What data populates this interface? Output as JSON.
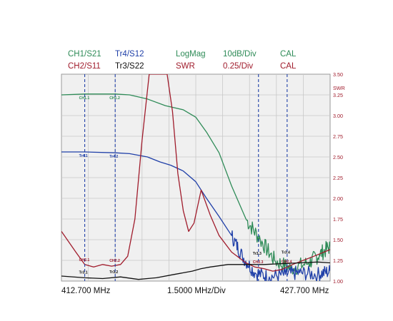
{
  "header": {
    "row1": [
      {
        "text": "CH1/S21",
        "color": "#2e8b57"
      },
      {
        "text": "Tr4/S12",
        "color": "#1f3fa8"
      },
      {
        "text": "LogMag",
        "color": "#2e8b57"
      },
      {
        "text": "10dB/Div",
        "color": "#2e8b57"
      },
      {
        "text": "CAL",
        "color": "#2e8b57"
      }
    ],
    "row2": [
      {
        "text": "CH2/S11",
        "color": "#a01c2c"
      },
      {
        "text": "Tr3/S22",
        "color": "#111111"
      },
      {
        "text": "SWR",
        "color": "#a01c2c"
      },
      {
        "text": "0.25/Div",
        "color": "#a01c2c"
      },
      {
        "text": "CAL",
        "color": "#a01c2c"
      }
    ]
  },
  "footer": {
    "start": "412.700 MHz",
    "span": "1.5000 MHz/Div",
    "stop": "427.700 MHz"
  },
  "colors": {
    "s21": "#2e8b57",
    "s12": "#1f3fa8",
    "s11": "#a01c2c",
    "s22": "#111111",
    "marker": "#1f3fa8",
    "grid": "#c8c8c8",
    "axis_label": "#a01c2c",
    "background": "#f0f0f0"
  },
  "chart_data": {
    "type": "line",
    "x_start_mhz": 412.7,
    "x_stop_mhz": 427.7,
    "x_div_mhz": 1.5,
    "grid": true,
    "right_axis": {
      "label": "SWR",
      "ticks": [
        "3.50",
        "3.25",
        "3.00",
        "2.75",
        "2.50",
        "2.25",
        "2.00",
        "1.75",
        "1.50",
        "1.25",
        "1.00"
      ],
      "ylim": [
        1.0,
        3.5
      ]
    },
    "series": [
      {
        "name": "CH1/S21",
        "key": "s21",
        "x": [
          412.7,
          414.0,
          415.7,
          416.5,
          417.5,
          418.5,
          419.5,
          420.2,
          420.8,
          421.5,
          422.2,
          423.0,
          423.8,
          424.6,
          425.5,
          426.5,
          427.1,
          427.7
        ],
        "y": [
          3.25,
          3.26,
          3.26,
          3.25,
          3.2,
          3.12,
          3.07,
          2.98,
          2.8,
          2.55,
          2.15,
          1.75,
          1.5,
          1.25,
          1.15,
          1.22,
          1.32,
          1.42
        ]
      },
      {
        "name": "Tr4/S12",
        "key": "s12",
        "x": [
          412.7,
          414.0,
          415.7,
          416.5,
          417.5,
          418.2,
          418.8,
          419.5,
          420.2,
          420.8,
          421.5,
          422.2,
          422.8,
          423.5,
          424.3,
          425.2,
          426.0,
          427.0,
          427.7
        ],
        "y": [
          2.56,
          2.56,
          2.55,
          2.54,
          2.5,
          2.44,
          2.4,
          2.33,
          2.2,
          2.0,
          1.78,
          1.55,
          1.3,
          1.1,
          1.05,
          1.08,
          1.1,
          1.08,
          1.12
        ]
      },
      {
        "name": "CH2/S11",
        "key": "s11",
        "x": [
          412.7,
          413.5,
          414.0,
          414.5,
          415.0,
          415.5,
          416.0,
          416.4,
          416.8,
          417.2,
          417.6,
          418.0,
          418.3,
          418.6,
          418.9,
          419.2,
          419.5,
          419.8,
          420.1,
          420.5,
          421.0,
          421.5,
          422.2,
          423.0,
          423.5,
          424.0,
          424.5,
          425.0,
          425.6,
          426.2,
          426.8,
          427.7
        ],
        "y": [
          1.6,
          1.35,
          1.2,
          1.17,
          1.2,
          1.18,
          1.2,
          1.3,
          1.75,
          2.7,
          3.5,
          3.5,
          3.5,
          3.5,
          3.05,
          2.3,
          1.85,
          1.6,
          1.7,
          2.1,
          1.8,
          1.55,
          1.35,
          1.22,
          1.17,
          1.15,
          1.12,
          1.14,
          1.2,
          1.25,
          1.3,
          1.38
        ]
      },
      {
        "name": "Tr3/S22",
        "key": "s22",
        "x": [
          412.7,
          414.0,
          415.0,
          416.0,
          417.0,
          417.5,
          418.0,
          419.0,
          420.0,
          420.5,
          421.0,
          422.0,
          423.0,
          424.0,
          425.0,
          426.0,
          427.0,
          427.7
        ],
        "y": [
          1.06,
          1.04,
          1.03,
          1.05,
          1.02,
          1.03,
          1.04,
          1.08,
          1.12,
          1.15,
          1.17,
          1.2,
          1.2,
          1.2,
          1.21,
          1.22,
          1.23,
          1.22
        ]
      }
    ],
    "markers": [
      {
        "x": 414.0,
        "labels": [
          {
            "text": "CH1.1",
            "series": "s21"
          },
          {
            "text": "Tr4.1",
            "series": "s12"
          },
          {
            "text": "CH2.1",
            "series": "s11"
          },
          {
            "text": "Tr3.1",
            "series": "s22"
          }
        ]
      },
      {
        "x": 415.7,
        "labels": [
          {
            "text": "CH1.2",
            "series": "s21"
          },
          {
            "text": "Tr4.2",
            "series": "s12"
          },
          {
            "text": "CH2.2",
            "series": "s11"
          },
          {
            "text": "Tr3.2",
            "series": "s22"
          }
        ]
      },
      {
        "x": 423.7,
        "labels": [
          {
            "text": "Tr3.3",
            "series": "s22"
          },
          {
            "text": "CH2.3",
            "series": "s11"
          }
        ]
      },
      {
        "x": 425.3,
        "labels": [
          {
            "text": "Tr3.4",
            "series": "s22"
          },
          {
            "text": "CH2.4",
            "series": "s11"
          }
        ]
      }
    ]
  }
}
